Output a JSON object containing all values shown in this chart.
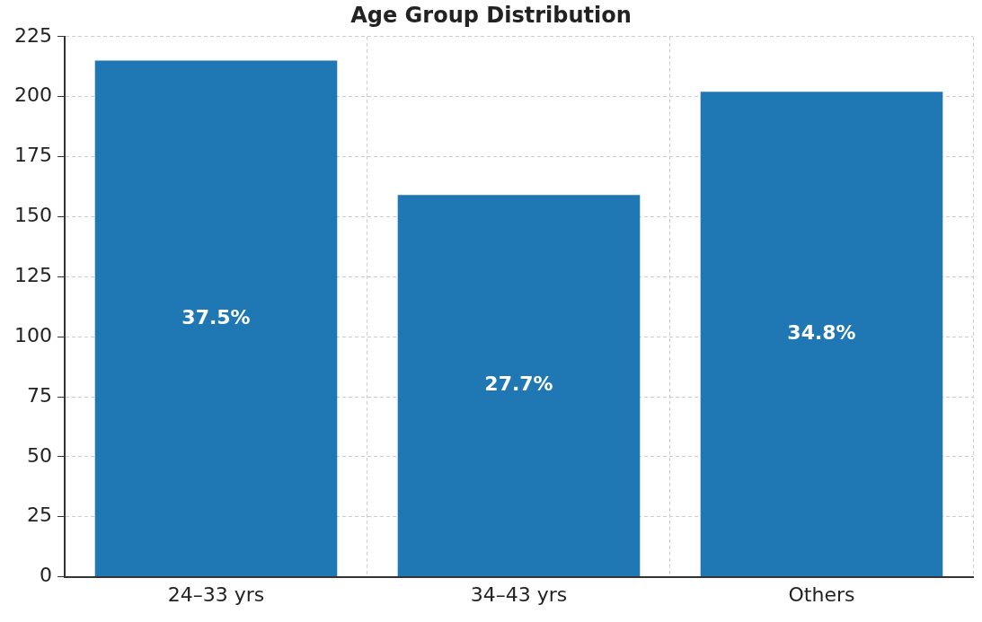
{
  "chart_data": {
    "type": "bar",
    "title": "Age Group Distribution",
    "categories": [
      "24–33 yrs",
      "34–43 yrs",
      "Others"
    ],
    "values": [
      215,
      159,
      202
    ],
    "color": "#1f77b4",
    "annotations": [
      "37.5%",
      "27.7%",
      "34.8%"
    ],
    "ylim": [
      0,
      225
    ],
    "yticks": [
      0,
      25,
      50,
      75,
      100,
      125,
      150,
      175,
      200,
      225
    ],
    "grid": true
  }
}
